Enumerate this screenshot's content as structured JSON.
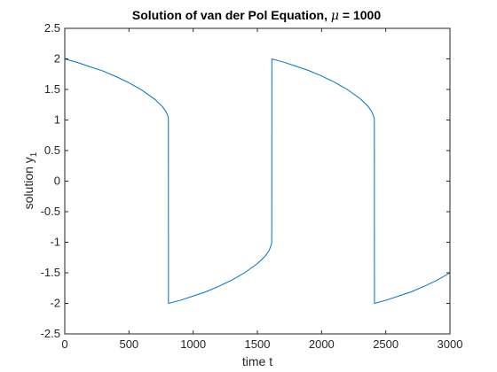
{
  "chart_data": {
    "type": "line",
    "title": "Solution of van der Pol Equation, μ = 1000",
    "title_parts": {
      "before": "Solution of van der Pol Equation, ",
      "symbol": "μ",
      "after": " = 1000"
    },
    "xlabel": "time t",
    "ylabel": "solution y1",
    "ylabel_parts": {
      "main": "solution y",
      "subscript": "1"
    },
    "xlim": [
      0,
      3000
    ],
    "ylim": [
      -2.5,
      2.5
    ],
    "xticks": [
      0,
      500,
      1000,
      1500,
      2000,
      2500,
      3000
    ],
    "xtick_labels": [
      "0",
      "500",
      "1000",
      "1500",
      "2000",
      "2500",
      "3000"
    ],
    "yticks": [
      2.5,
      2,
      1.5,
      1,
      0.5,
      0,
      -0.5,
      -1,
      -1.5,
      -2,
      -2.5
    ],
    "ytick_labels": [
      "2.5",
      "2",
      "1.5",
      "1",
      "0.5",
      "0",
      "-0.5",
      "-1",
      "-1.5",
      "-2",
      "-2.5"
    ],
    "grid": false,
    "box": true,
    "series": [
      {
        "color": "#0072bd",
        "x": [
          0,
          100,
          200,
          300,
          400,
          500,
          600,
          700,
          760,
          790,
          800,
          806,
          807,
          807.5,
          900,
          1000,
          1100,
          1200,
          1300,
          1400,
          1500,
          1560,
          1590,
          1600,
          1608,
          1612,
          1613,
          1700,
          1800,
          1900,
          2000,
          2100,
          2200,
          2300,
          2360,
          2390,
          2400,
          2408,
          2411,
          2412,
          2500,
          2600,
          2700,
          2800,
          2900,
          3000
        ],
        "y": [
          2,
          1.94,
          1.87,
          1.8,
          1.71,
          1.61,
          1.49,
          1.34,
          1.22,
          1.13,
          1.08,
          1.04,
          1.0,
          -2.0,
          -1.95,
          -1.88,
          -1.81,
          -1.72,
          -1.62,
          -1.5,
          -1.35,
          -1.23,
          -1.14,
          -1.09,
          -1.04,
          -1.01,
          2.0,
          1.95,
          1.88,
          1.81,
          1.72,
          1.62,
          1.5,
          1.35,
          1.23,
          1.14,
          1.09,
          1.04,
          1.01,
          -2.0,
          -1.95,
          -1.88,
          -1.81,
          -1.72,
          -1.62,
          -1.5
        ]
      }
    ],
    "colors": {
      "line": "#0072bd",
      "axes": "#262626",
      "background": "#ffffff"
    }
  }
}
